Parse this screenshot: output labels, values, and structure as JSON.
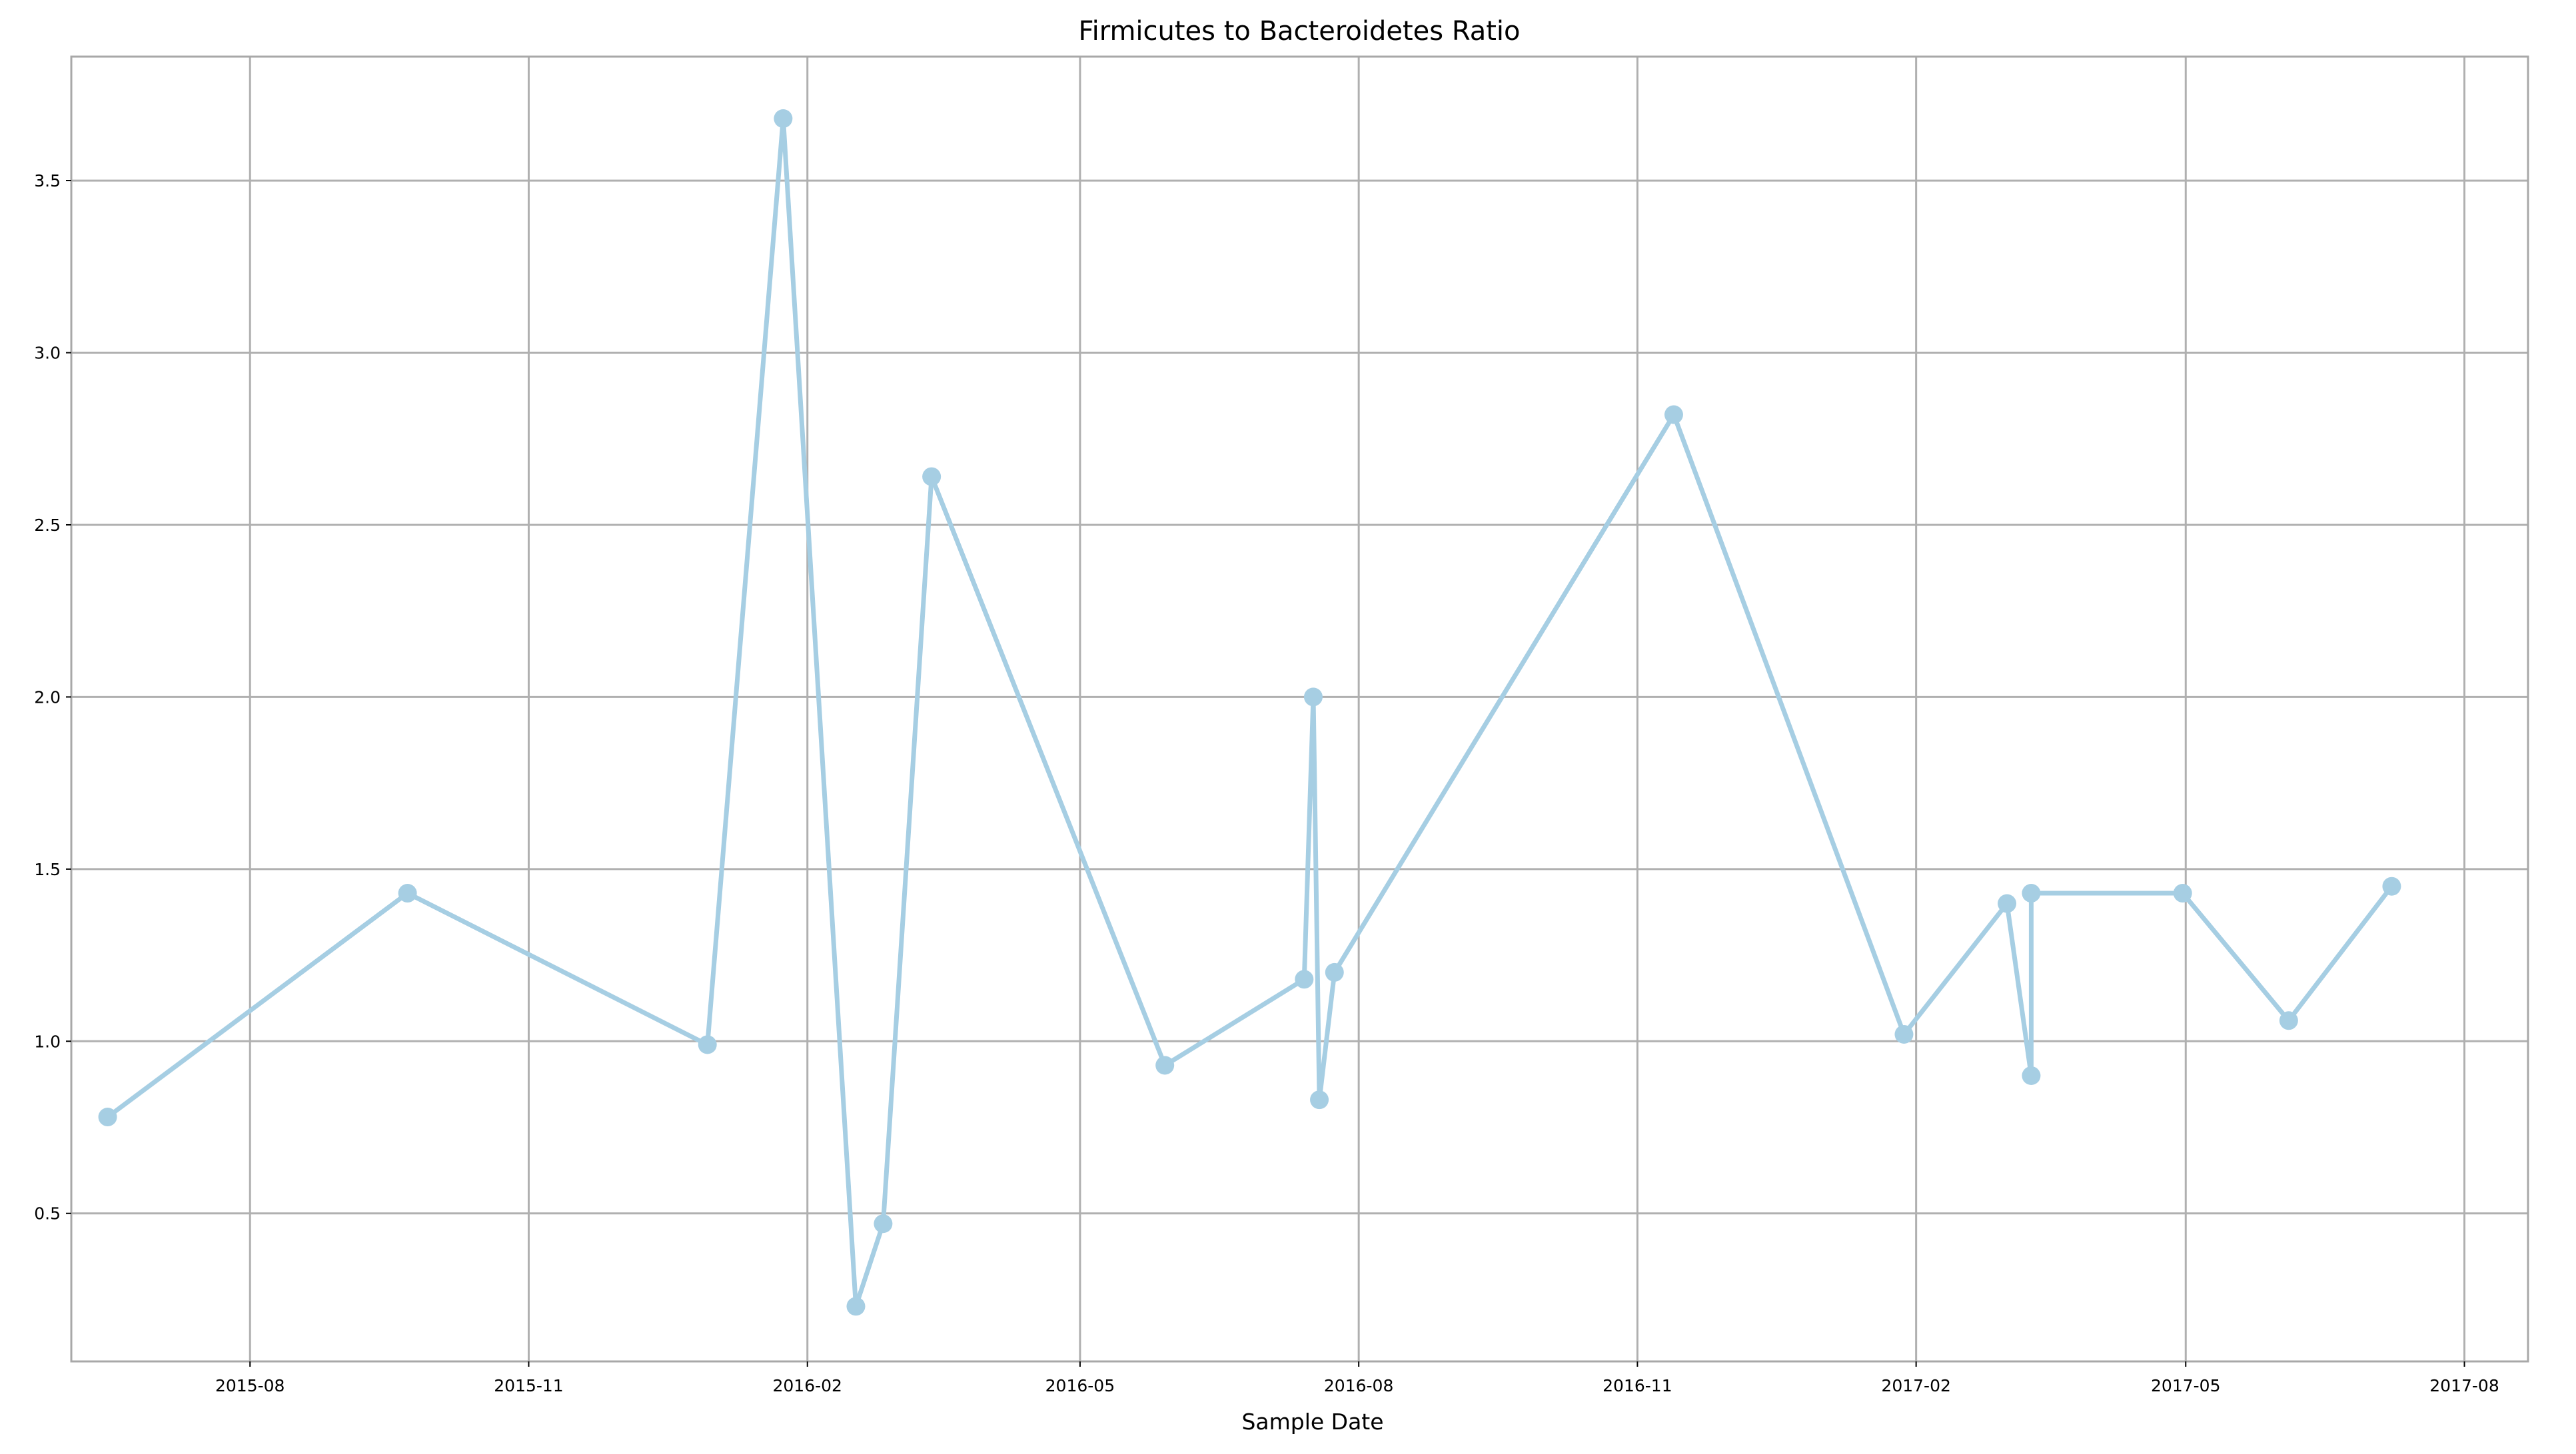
{
  "chart_data": {
    "type": "line",
    "title": "Firmicutes to Bacteroidetes Ratio",
    "xlabel": "Sample Date",
    "ylabel": "",
    "x_scale": "date",
    "xlim": [
      "2015-06-03",
      "2017-08-22"
    ],
    "ylim": [
      0.07,
      3.86
    ],
    "x_ticks": [
      "2015-08",
      "2015-11",
      "2016-02",
      "2016-05",
      "2016-08",
      "2016-11",
      "2017-02",
      "2017-05",
      "2017-08"
    ],
    "y_ticks": [
      "0.5",
      "1.0",
      "1.5",
      "2.0",
      "2.5",
      "3.0",
      "3.5"
    ],
    "grid": true,
    "legend": "none",
    "series": [
      {
        "color": "#a6cee3",
        "marker": "circle",
        "points": [
          {
            "x": "2015-06-15",
            "y": 0.78
          },
          {
            "x": "2015-09-22",
            "y": 1.43
          },
          {
            "x": "2015-12-30",
            "y": 0.99
          },
          {
            "x": "2016-01-24",
            "y": 3.68
          },
          {
            "x": "2016-02-17",
            "y": 0.23
          },
          {
            "x": "2016-02-26",
            "y": 0.47
          },
          {
            "x": "2016-03-13",
            "y": 2.64
          },
          {
            "x": "2016-05-29",
            "y": 0.93
          },
          {
            "x": "2016-07-14",
            "y": 1.18
          },
          {
            "x": "2016-07-17",
            "y": 2.0
          },
          {
            "x": "2016-07-19",
            "y": 0.83
          },
          {
            "x": "2016-07-24",
            "y": 1.2
          },
          {
            "x": "2016-11-13",
            "y": 2.82
          },
          {
            "x": "2017-01-28",
            "y": 1.02
          },
          {
            "x": "2017-03-03",
            "y": 1.4
          },
          {
            "x": "2017-03-11",
            "y": 0.9
          },
          {
            "x": "2017-03-11",
            "y": 1.43
          },
          {
            "x": "2017-04-30",
            "y": 1.43
          },
          {
            "x": "2017-06-04",
            "y": 1.06
          },
          {
            "x": "2017-07-08",
            "y": 1.45
          }
        ]
      }
    ]
  }
}
